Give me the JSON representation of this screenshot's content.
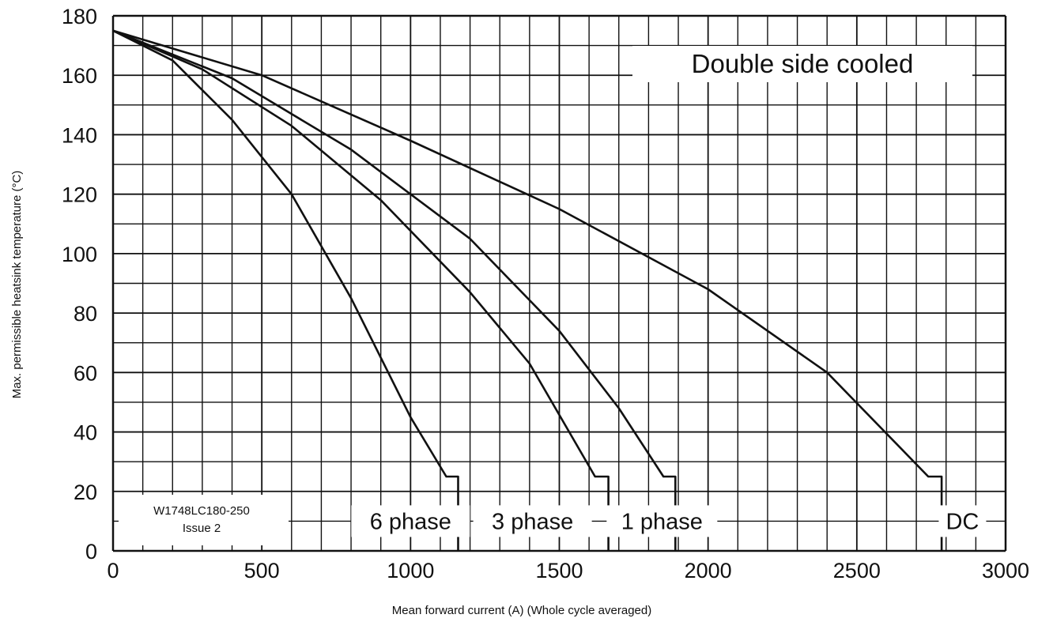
{
  "chart_data": {
    "type": "line",
    "title": "Double side cooled",
    "xlabel": "Mean forward current (A) (Whole cycle averaged)",
    "ylabel": "Max. permissible heatsink temperature  (°C)",
    "xlim": [
      0,
      3000
    ],
    "ylim": [
      0,
      180
    ],
    "x_ticks": [
      "0",
      "500",
      "1000",
      "1500",
      "2000",
      "2500",
      "3000"
    ],
    "y_ticks": [
      "0",
      "20",
      "40",
      "60",
      "80",
      "100",
      "120",
      "140",
      "160",
      "180"
    ],
    "grid": true,
    "note": [
      "W1748LC180-250",
      "Issue 2"
    ],
    "series": [
      {
        "name": "6 phase",
        "x": [
          0,
          200,
          400,
          600,
          800,
          1000,
          1120,
          1160,
          1160
        ],
        "y": [
          175,
          165,
          145,
          120,
          85,
          45,
          25,
          25,
          0
        ]
      },
      {
        "name": "3 phase",
        "x": [
          0,
          300,
          600,
          900,
          1200,
          1400,
          1620,
          1665,
          1665
        ],
        "y": [
          175,
          162,
          143,
          118,
          87,
          63,
          25,
          25,
          0
        ]
      },
      {
        "name": "1 phase",
        "x": [
          0,
          400,
          800,
          1200,
          1500,
          1700,
          1850,
          1890,
          1890
        ],
        "y": [
          175,
          159,
          135,
          105,
          74,
          48,
          25,
          25,
          0
        ]
      },
      {
        "name": "DC",
        "x": [
          0,
          500,
          1000,
          1500,
          2000,
          2400,
          2740,
          2785,
          2785
        ],
        "y": [
          175,
          160,
          138,
          115,
          88,
          60,
          25,
          25,
          0
        ]
      }
    ]
  }
}
